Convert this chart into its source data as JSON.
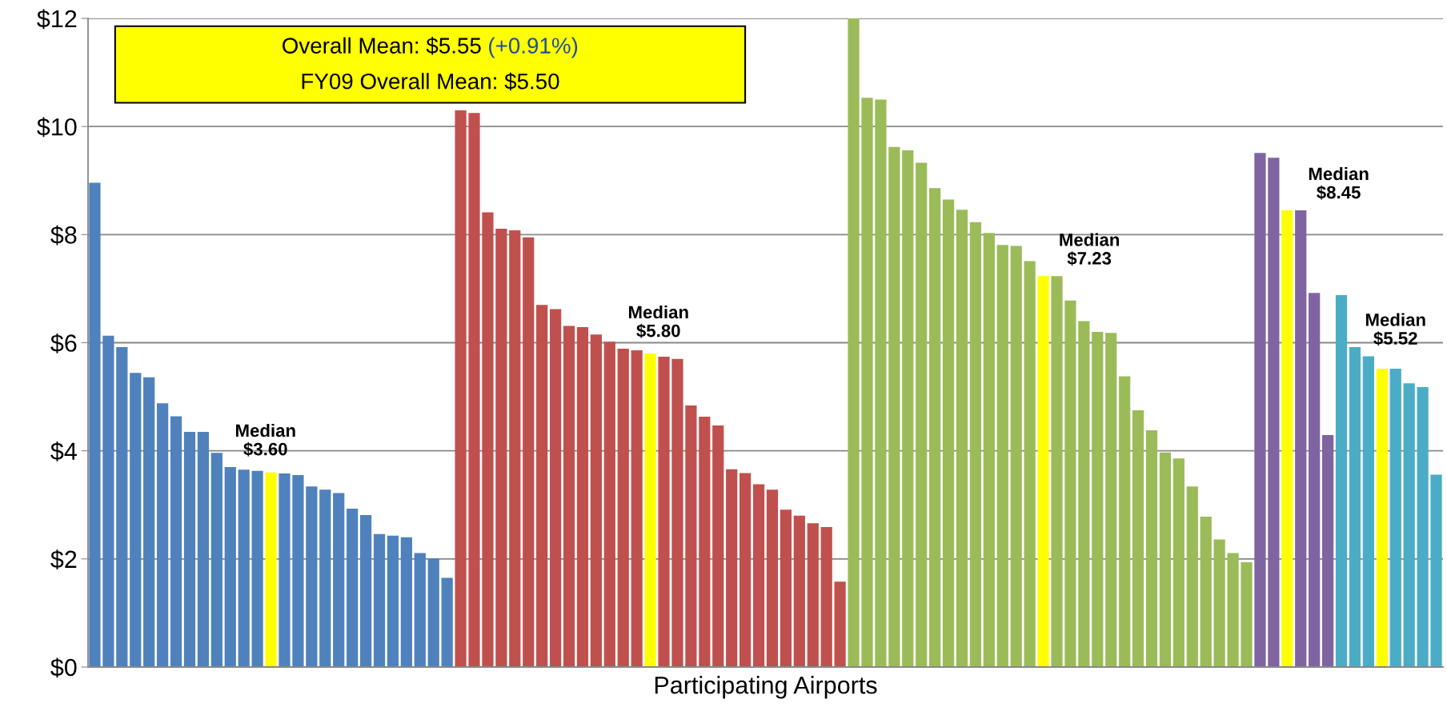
{
  "chart_data": {
    "type": "bar",
    "categories": [
      null,
      null,
      null,
      null,
      null,
      null,
      null,
      null,
      null,
      null,
      null,
      null,
      null,
      null,
      null,
      null,
      null,
      null,
      null,
      null,
      null,
      null,
      null,
      null,
      null,
      null,
      null,
      null,
      null,
      null,
      null,
      null,
      null,
      null,
      null,
      null,
      null,
      null,
      null,
      null,
      null,
      null,
      null,
      null,
      null,
      null,
      null,
      null,
      null,
      null,
      null,
      null,
      null,
      null,
      null,
      null,
      null,
      null,
      null,
      null,
      null,
      null,
      null,
      null,
      null,
      null,
      null,
      null,
      null,
      null,
      null,
      null,
      null,
      null,
      null,
      null,
      null,
      null,
      null,
      null,
      null,
      null,
      null,
      null,
      null,
      null,
      null,
      null,
      null,
      null,
      null,
      null,
      null,
      null,
      null,
      null,
      null,
      null,
      null,
      null
    ],
    "values": [
      8.96,
      6.13,
      5.92,
      5.44,
      5.36,
      4.88,
      4.64,
      4.35,
      4.35,
      3.96,
      3.7,
      3.65,
      3.63,
      3.6,
      3.58,
      3.55,
      3.34,
      3.28,
      3.22,
      2.93,
      2.81,
      2.46,
      2.43,
      2.4,
      2.11,
      2.01,
      1.65,
      10.3,
      10.25,
      8.41,
      8.11,
      8.08,
      7.95,
      6.7,
      6.62,
      6.31,
      6.29,
      6.15,
      6.02,
      5.89,
      5.86,
      5.8,
      5.74,
      5.7,
      4.84,
      4.63,
      4.47,
      3.66,
      3.59,
      3.38,
      3.28,
      2.91,
      2.8,
      2.66,
      2.59,
      1.58,
      12.0,
      10.53,
      10.5,
      9.62,
      9.56,
      9.33,
      8.86,
      8.65,
      8.46,
      8.23,
      8.03,
      7.81,
      7.79,
      7.51,
      7.23,
      7.23,
      6.78,
      6.4,
      6.2,
      6.18,
      5.38,
      4.75,
      4.38,
      3.97,
      3.86,
      3.34,
      2.78,
      2.36,
      2.11,
      1.94,
      9.51,
      9.42,
      8.45,
      8.45,
      6.92,
      4.29,
      6.88,
      5.92,
      5.75,
      5.52,
      5.52,
      5.25,
      5.18,
      3.56
    ],
    "colors": [
      "#4f81bd",
      "#4f81bd",
      "#4f81bd",
      "#4f81bd",
      "#4f81bd",
      "#4f81bd",
      "#4f81bd",
      "#4f81bd",
      "#4f81bd",
      "#4f81bd",
      "#4f81bd",
      "#4f81bd",
      "#4f81bd",
      "#ffff00",
      "#4f81bd",
      "#4f81bd",
      "#4f81bd",
      "#4f81bd",
      "#4f81bd",
      "#4f81bd",
      "#4f81bd",
      "#4f81bd",
      "#4f81bd",
      "#4f81bd",
      "#4f81bd",
      "#4f81bd",
      "#4f81bd",
      "#c0504d",
      "#c0504d",
      "#c0504d",
      "#c0504d",
      "#c0504d",
      "#c0504d",
      "#c0504d",
      "#c0504d",
      "#c0504d",
      "#c0504d",
      "#c0504d",
      "#c0504d",
      "#c0504d",
      "#c0504d",
      "#ffff00",
      "#c0504d",
      "#c0504d",
      "#c0504d",
      "#c0504d",
      "#c0504d",
      "#c0504d",
      "#c0504d",
      "#c0504d",
      "#c0504d",
      "#c0504d",
      "#c0504d",
      "#c0504d",
      "#c0504d",
      "#c0504d",
      "#9bbb59",
      "#9bbb59",
      "#9bbb59",
      "#9bbb59",
      "#9bbb59",
      "#9bbb59",
      "#9bbb59",
      "#9bbb59",
      "#9bbb59",
      "#9bbb59",
      "#9bbb59",
      "#9bbb59",
      "#9bbb59",
      "#9bbb59",
      "#ffff00",
      "#9bbb59",
      "#9bbb59",
      "#9bbb59",
      "#9bbb59",
      "#9bbb59",
      "#9bbb59",
      "#9bbb59",
      "#9bbb59",
      "#9bbb59",
      "#9bbb59",
      "#9bbb59",
      "#9bbb59",
      "#9bbb59",
      "#9bbb59",
      "#9bbb59",
      "#8064a2",
      "#8064a2",
      "#ffff00",
      "#8064a2",
      "#8064a2",
      "#8064a2",
      "#4bacc6",
      "#4bacc6",
      "#4bacc6",
      "#ffff00",
      "#4bacc6",
      "#4bacc6",
      "#4bacc6",
      "#4bacc6"
    ],
    "xlabel": "Participating Airports",
    "ylim": [
      0,
      12
    ],
    "yticks": [
      {
        "value": 0,
        "label": "$0"
      },
      {
        "value": 2,
        "label": "$2"
      },
      {
        "value": 4,
        "label": "$4"
      },
      {
        "value": 6,
        "label": "$6"
      },
      {
        "value": 8,
        "label": "$8"
      },
      {
        "value": 10,
        "label": "$10"
      },
      {
        "value": 12,
        "label": "$12"
      }
    ],
    "grid": "y",
    "tick_labels": "y",
    "annotations": [
      "Overall Mean: $5.55",
      "(+0.91%)",
      "FY09 Overall Mean: $5.50",
      "Median\n$3.60",
      "Median\n$5.80",
      "Median\n$7.23",
      "Median\n$8.45",
      "Median\n$5.52"
    ]
  }
}
